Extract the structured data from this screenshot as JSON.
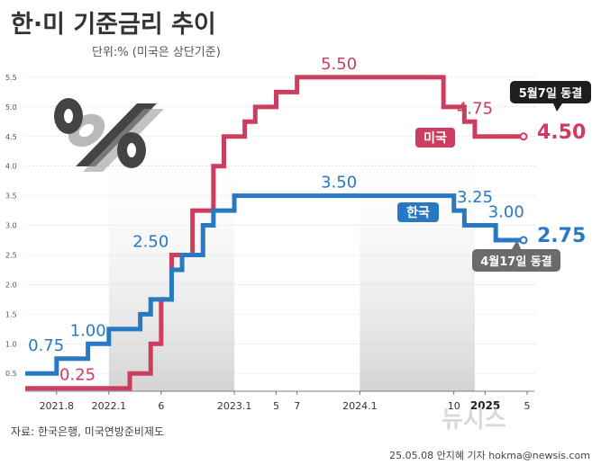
{
  "title": "한·미 기준금리 추이",
  "unit_note": "단위:% (미국은 상단기준)",
  "source": "자료: 한국은행, 미국연방준비제도",
  "credit": "25.05.08 안지혜 기자 hokma@newsis.com",
  "watermark": "뉴시스",
  "colors": {
    "us": "#cc3d5f",
    "korea": "#2878c2",
    "callout": "#1e1e1e",
    "callout_kr": "#6b6b6b"
  },
  "chart_data": {
    "type": "line",
    "step": true,
    "title": "한·미 기준금리 추이",
    "ylabel": "",
    "ylim": [
      0.2,
      5.65
    ],
    "yticks": [
      "0.5",
      "1.0",
      "1.5",
      "2.0",
      "2.5",
      "3.0",
      "3.5",
      "4.0",
      "4.5",
      "5.0",
      "5.5"
    ],
    "xlim": [
      "2021-05",
      "2025-05"
    ],
    "xticks": [
      {
        "label": "2021.8",
        "x": "2021-08",
        "bold": false
      },
      {
        "label": "2022.1",
        "x": "2022-01",
        "bold": false
      },
      {
        "label": "6",
        "x": "2022-06",
        "bold": false
      },
      {
        "label": "2023.1",
        "x": "2023-01",
        "bold": false
      },
      {
        "label": "5",
        "x": "2023-05",
        "bold": false
      },
      {
        "label": "7",
        "x": "2023-07",
        "bold": false
      },
      {
        "label": "2024.1",
        "x": "2024-01",
        "bold": false
      },
      {
        "label": "10",
        "x": "2024-10",
        "bold": false
      },
      {
        "label": "2025",
        "x": "2025-01",
        "bold": true
      },
      {
        "label": "5",
        "x": "2025-05",
        "bold": false
      }
    ],
    "shaded_ranges": [
      [
        "2022-01",
        "2023-01"
      ],
      [
        "2024-01",
        "2024-12"
      ]
    ],
    "series": [
      {
        "name": "미국",
        "color": "#cc3d5f",
        "points": [
          {
            "x": "2021-05",
            "y": 0.25
          },
          {
            "x": "2022-03",
            "y": 0.5
          },
          {
            "x": "2022-05",
            "y": 1.0
          },
          {
            "x": "2022-06",
            "y": 1.75
          },
          {
            "x": "2022-07",
            "y": 2.5
          },
          {
            "x": "2022-09",
            "y": 3.25
          },
          {
            "x": "2022-11",
            "y": 4.0
          },
          {
            "x": "2022-12",
            "y": 4.5
          },
          {
            "x": "2023-02",
            "y": 4.75
          },
          {
            "x": "2023-03",
            "y": 5.0
          },
          {
            "x": "2023-05",
            "y": 5.25
          },
          {
            "x": "2023-07",
            "y": 5.5
          },
          {
            "x": "2024-09",
            "y": 5.0
          },
          {
            "x": "2024-11",
            "y": 4.75
          },
          {
            "x": "2024-12",
            "y": 4.5
          },
          {
            "x": "2025-05",
            "y": 4.5
          }
        ]
      },
      {
        "name": "한국",
        "color": "#2878c2",
        "points": [
          {
            "x": "2021-05",
            "y": 0.5
          },
          {
            "x": "2021-08",
            "y": 0.75
          },
          {
            "x": "2021-11",
            "y": 1.0
          },
          {
            "x": "2022-01",
            "y": 1.25
          },
          {
            "x": "2022-04",
            "y": 1.5
          },
          {
            "x": "2022-05",
            "y": 1.75
          },
          {
            "x": "2022-07",
            "y": 2.25
          },
          {
            "x": "2022-08",
            "y": 2.5
          },
          {
            "x": "2022-10",
            "y": 3.0
          },
          {
            "x": "2022-11",
            "y": 3.25
          },
          {
            "x": "2023-01",
            "y": 3.5
          },
          {
            "x": "2024-10",
            "y": 3.25
          },
          {
            "x": "2024-11",
            "y": 3.0
          },
          {
            "x": "2025-02",
            "y": 2.75
          },
          {
            "x": "2025-05",
            "y": 2.75
          }
        ]
      }
    ],
    "annotations": [
      {
        "id": "us-025",
        "text": "0.25",
        "series": "us",
        "x": "2021-10",
        "y": 0.25
      },
      {
        "id": "us-550",
        "text": "5.50",
        "series": "us",
        "x": "2023-11",
        "y": 5.5
      },
      {
        "id": "us-475",
        "text": "4.75",
        "series": "us",
        "x": "2024-12",
        "y": 4.75
      },
      {
        "id": "kr-075",
        "text": "0.75",
        "series": "kr",
        "x": "2021-07",
        "y": 0.75
      },
      {
        "id": "kr-100",
        "text": "1.00",
        "series": "kr",
        "x": "2021-11",
        "y": 1.0
      },
      {
        "id": "kr-250",
        "text": "2.50",
        "series": "kr",
        "x": "2022-05",
        "y": 2.5
      },
      {
        "id": "kr-350",
        "text": "3.50",
        "series": "kr",
        "x": "2023-11",
        "y": 3.5
      },
      {
        "id": "kr-325",
        "text": "3.25",
        "series": "kr",
        "x": "2024-12",
        "y": 3.25
      },
      {
        "id": "kr-300",
        "text": "3.00",
        "series": "kr",
        "x": "2025-03",
        "y": 3.0
      }
    ],
    "end_values": {
      "us": "4.50",
      "korea": "2.75"
    },
    "series_tags": {
      "us": "미국",
      "korea": "한국"
    },
    "callouts": {
      "us": "5월7일 동결",
      "korea": "4월17일 동결"
    }
  }
}
